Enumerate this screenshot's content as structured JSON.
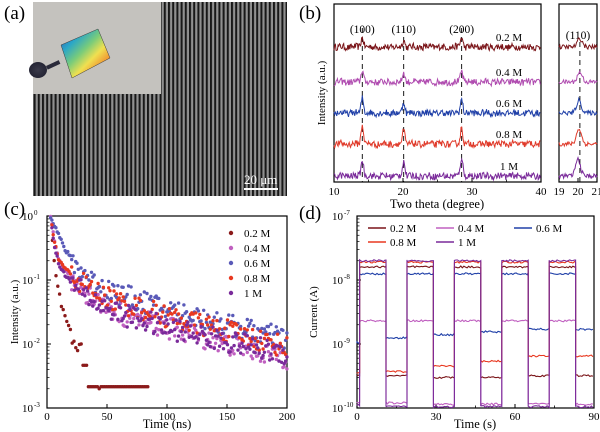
{
  "panels": {
    "a": {
      "label": "(a)",
      "scalebar": "20 μm",
      "colors": {
        "stripe_dark": "#202020",
        "stripe_light": "#a2a2a2",
        "inset_bg": "#c2c0bc"
      }
    },
    "b": {
      "label": "(b)"
    },
    "c": {
      "label": "(c)"
    },
    "d": {
      "label": "(d)"
    }
  },
  "chart_data": [
    {
      "id": "b-main",
      "type": "line",
      "xlabel": "Two theta (degree)",
      "ylabel": "Intensity (a.u.)",
      "xlim": [
        10,
        40
      ],
      "xticks": [
        10,
        20,
        30,
        40
      ],
      "y_ticks_shown": false,
      "peak_labels": [
        {
          "text": "(100)",
          "x": 14.1
        },
        {
          "text": "(110)",
          "x": 20.1
        },
        {
          "text": "(200)",
          "x": 28.5
        }
      ],
      "dashed_lines_x": [
        14.1,
        20.1,
        28.5
      ],
      "series": [
        {
          "name": "0.2 M",
          "color": "#7a1418",
          "offset": 4,
          "peaks": [
            [
              14.1,
              0.35
            ],
            [
              20.1,
              0.25
            ],
            [
              28.5,
              0.35
            ]
          ]
        },
        {
          "name": "0.4 M",
          "color": "#b04cb0",
          "offset": 3,
          "peaks": [
            [
              14.1,
              0.45
            ],
            [
              20.1,
              0.35
            ],
            [
              28.5,
              0.4
            ]
          ]
        },
        {
          "name": "0.6 M",
          "color": "#2040a8",
          "offset": 2,
          "peaks": [
            [
              14.1,
              0.55
            ],
            [
              20.1,
              0.4
            ],
            [
              28.5,
              0.5
            ]
          ]
        },
        {
          "name": "0.8 M",
          "color": "#e03a2a",
          "offset": 1,
          "peaks": [
            [
              14.1,
              0.7
            ],
            [
              20.1,
              0.5
            ],
            [
              28.5,
              0.6
            ]
          ]
        },
        {
          "name": "1 M",
          "color": "#7a2a9a",
          "offset": 0,
          "peaks": [
            [
              14.1,
              0.6
            ],
            [
              20.1,
              0.55
            ],
            [
              28.5,
              0.7
            ]
          ]
        }
      ]
    },
    {
      "id": "b-zoom",
      "type": "line",
      "title": "(110)",
      "xlim": [
        19,
        21
      ],
      "xticks": [
        19,
        20,
        21
      ],
      "dashed_lines_x": [
        20.1
      ],
      "series": [
        {
          "name": "0.2 M",
          "color": "#7a1418",
          "offset": 4,
          "peak": [
            20.1,
            0.3
          ]
        },
        {
          "name": "0.4 M",
          "color": "#b04cb0",
          "offset": 3,
          "peak": [
            20.1,
            0.35
          ]
        },
        {
          "name": "0.6 M",
          "color": "#2040a8",
          "offset": 2,
          "peak": [
            20.05,
            0.45
          ]
        },
        {
          "name": "0.8 M",
          "color": "#e03a2a",
          "offset": 1,
          "peak": [
            20.05,
            0.55
          ]
        },
        {
          "name": "1 M",
          "color": "#7a2a9a",
          "offset": 0,
          "peak": [
            20.0,
            0.6
          ]
        }
      ]
    },
    {
      "id": "c",
      "type": "scatter",
      "xlabel": "Time (ns)",
      "ylabel": "Intensity (a.u.)",
      "xlim": [
        0,
        200
      ],
      "ylim": [
        0.001,
        1
      ],
      "yscale": "log",
      "xticks": [
        0,
        50,
        100,
        150,
        200
      ],
      "yticks": [
        {
          "base": "10",
          "exp": "0"
        },
        {
          "base": "10",
          "exp": "-1"
        },
        {
          "base": "10",
          "exp": "-2"
        },
        {
          "base": "10",
          "exp": "-3"
        }
      ],
      "legend_position": "top-right",
      "series": [
        {
          "name": "0.2 M",
          "color": "#8b1a1a",
          "decay": [
            [
              3,
              1.0
            ],
            [
              5,
              0.3
            ],
            [
              8,
              0.1
            ],
            [
              12,
              0.04
            ],
            [
              18,
              0.02
            ],
            [
              25,
              0.008
            ],
            [
              30,
              0.005
            ],
            [
              40,
              0.002
            ],
            [
              85,
              0.002
            ]
          ]
        },
        {
          "name": "0.4 M",
          "color": "#c060c0",
          "decay": [
            [
              3,
              1.0
            ],
            [
              6,
              0.45
            ],
            [
              10,
              0.2
            ],
            [
              20,
              0.1
            ],
            [
              40,
              0.05
            ],
            [
              60,
              0.03
            ],
            [
              100,
              0.018
            ],
            [
              150,
              0.01
            ],
            [
              200,
              0.006
            ]
          ]
        },
        {
          "name": "0.6 M",
          "color": "#5a5ab8",
          "decay": [
            [
              3,
              1.0
            ],
            [
              8,
              0.6
            ],
            [
              15,
              0.3
            ],
            [
              25,
              0.16
            ],
            [
              40,
              0.09
            ],
            [
              60,
              0.06
            ],
            [
              100,
              0.035
            ],
            [
              150,
              0.02
            ],
            [
              200,
              0.012
            ]
          ]
        },
        {
          "name": "0.8 M",
          "color": "#e83820",
          "decay": [
            [
              3,
              1.0
            ],
            [
              6,
              0.4
            ],
            [
              10,
              0.2
            ],
            [
              20,
              0.12
            ],
            [
              40,
              0.065
            ],
            [
              60,
              0.045
            ],
            [
              100,
              0.027
            ],
            [
              150,
              0.016
            ],
            [
              200,
              0.009
            ]
          ]
        },
        {
          "name": "1 M",
          "color": "#7a2a9a",
          "decay": [
            [
              3,
              1.0
            ],
            [
              6,
              0.35
            ],
            [
              10,
              0.17
            ],
            [
              20,
              0.09
            ],
            [
              40,
              0.045
            ],
            [
              60,
              0.03
            ],
            [
              100,
              0.018
            ],
            [
              150,
              0.011
            ],
            [
              200,
              0.007
            ]
          ]
        }
      ]
    },
    {
      "id": "d",
      "type": "line",
      "xlabel": "Time (s)",
      "ylabel": "Current (A)",
      "xlim": [
        0,
        90
      ],
      "ylim": [
        1e-10,
        1e-07
      ],
      "yscale": "log",
      "xticks": [
        0,
        30,
        60,
        90
      ],
      "yticks": [
        {
          "base": "10",
          "exp": "-7"
        },
        {
          "base": "10",
          "exp": "-8"
        },
        {
          "base": "10",
          "exp": "-9"
        },
        {
          "base": "10",
          "exp": "-10"
        }
      ],
      "legend_position": "top",
      "on_periods_s": [
        [
          1,
          11
        ],
        [
          19,
          29
        ],
        [
          37,
          47
        ],
        [
          55,
          65
        ],
        [
          73,
          83
        ]
      ],
      "series": [
        {
          "name": "0.2 M",
          "color": "#7a1418",
          "on": 1.6e-08,
          "off": [
            3.2e-10,
            3.2e-10,
            3e-10,
            3e-10,
            3.2e-10
          ]
        },
        {
          "name": "0.4 M",
          "color": "#c060c0",
          "on": 2.3e-09,
          "off": [
            1.2e-10,
            1.2e-10,
            1.15e-10,
            1.15e-10,
            1.15e-10
          ]
        },
        {
          "name": "0.6 M",
          "color": "#2040a8",
          "on": 1.25e-08,
          "off": [
            1.05e-09,
            1.25e-09,
            1.4e-09,
            1.55e-09,
            1.7e-09
          ]
        },
        {
          "name": "0.8 M",
          "color": "#e83820",
          "on": 1.9e-08,
          "off": [
            3.5e-10,
            3.7e-10,
            4.5e-10,
            5.4e-10,
            6.5e-10
          ]
        },
        {
          "name": "1 M",
          "color": "#7a2a9a",
          "on": 2e-08,
          "off": [
            1.1e-10,
            1.05e-10,
            1.05e-10,
            1.05e-10,
            1.05e-10
          ]
        }
      ]
    }
  ]
}
